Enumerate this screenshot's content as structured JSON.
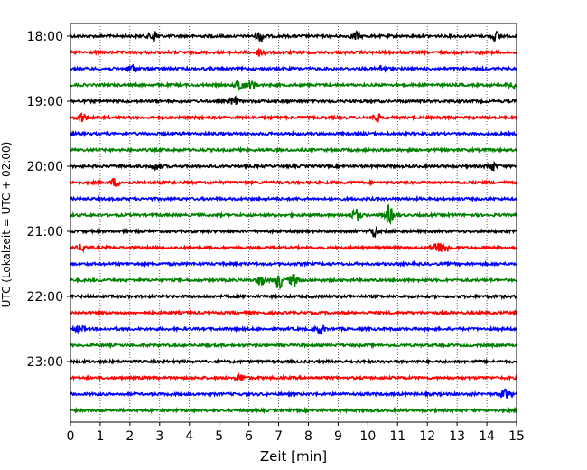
{
  "chart_data": {
    "type": "line",
    "title": "",
    "xlabel": "Zeit  [min]",
    "ylabel": "UTC (Lokalzeit = UTC + 02:00)",
    "xlim": [
      0,
      15
    ],
    "x_ticks": [
      "0",
      "1",
      "2",
      "3",
      "4",
      "5",
      "6",
      "7",
      "8",
      "9",
      "10",
      "11",
      "12",
      "13",
      "14",
      "15"
    ],
    "y_ticks": [
      {
        "label": "18:00",
        "row": 0
      },
      {
        "label": "19:00",
        "row": 4
      },
      {
        "label": "20:00",
        "row": 8
      },
      {
        "label": "21:00",
        "row": 12
      },
      {
        "label": "22:00",
        "row": 16
      },
      {
        "label": "23:00",
        "row": 20
      }
    ],
    "grid": "vertical dotted at each minute",
    "trace_interval_minutes": 15,
    "trace_colors": [
      "#000000",
      "#ff0000",
      "#0000ff",
      "#008000"
    ],
    "traces": [
      {
        "start": "18:00",
        "color": "#000000"
      },
      {
        "start": "18:15",
        "color": "#ff0000"
      },
      {
        "start": "18:30",
        "color": "#0000ff"
      },
      {
        "start": "18:45",
        "color": "#008000"
      },
      {
        "start": "19:00",
        "color": "#000000"
      },
      {
        "start": "19:15",
        "color": "#ff0000"
      },
      {
        "start": "19:30",
        "color": "#0000ff"
      },
      {
        "start": "19:45",
        "color": "#008000"
      },
      {
        "start": "20:00",
        "color": "#000000"
      },
      {
        "start": "20:15",
        "color": "#ff0000"
      },
      {
        "start": "20:30",
        "color": "#0000ff"
      },
      {
        "start": "20:45",
        "color": "#008000"
      },
      {
        "start": "21:00",
        "color": "#000000"
      },
      {
        "start": "21:15",
        "color": "#ff0000"
      },
      {
        "start": "21:30",
        "color": "#0000ff"
      },
      {
        "start": "21:45",
        "color": "#008000"
      },
      {
        "start": "22:00",
        "color": "#000000"
      },
      {
        "start": "22:15",
        "color": "#ff0000"
      },
      {
        "start": "22:30",
        "color": "#0000ff"
      },
      {
        "start": "22:45",
        "color": "#008000"
      },
      {
        "start": "23:00",
        "color": "#000000"
      },
      {
        "start": "23:15",
        "color": "#ff0000"
      },
      {
        "start": "23:30",
        "color": "#0000ff"
      },
      {
        "start": "23:45",
        "color": "#008000"
      }
    ],
    "events": [
      {
        "row": 0,
        "minute": 2.8,
        "amplitude": 1.5
      },
      {
        "row": 0,
        "minute": 6.4,
        "amplitude": 1.2
      },
      {
        "row": 0,
        "minute": 9.6,
        "amplitude": 1.0
      },
      {
        "row": 0,
        "minute": 14.3,
        "amplitude": 1.1
      },
      {
        "row": 1,
        "minute": 6.4,
        "amplitude": 1.0
      },
      {
        "row": 2,
        "minute": 2.1,
        "amplitude": 1.0
      },
      {
        "row": 2,
        "minute": 10.5,
        "amplitude": 0.8
      },
      {
        "row": 3,
        "minute": 5.7,
        "amplitude": 1.4
      },
      {
        "row": 3,
        "minute": 6.1,
        "amplitude": 1.0
      },
      {
        "row": 3,
        "minute": 14.9,
        "amplitude": 1.0
      },
      {
        "row": 4,
        "minute": 5.5,
        "amplitude": 1.0
      },
      {
        "row": 5,
        "minute": 0.4,
        "amplitude": 1.0
      },
      {
        "row": 5,
        "minute": 10.3,
        "amplitude": 0.8
      },
      {
        "row": 8,
        "minute": 2.9,
        "amplitude": 1.0
      },
      {
        "row": 8,
        "minute": 14.2,
        "amplitude": 1.0
      },
      {
        "row": 9,
        "minute": 1.5,
        "amplitude": 1.0
      },
      {
        "row": 11,
        "minute": 9.6,
        "amplitude": 1.5
      },
      {
        "row": 11,
        "minute": 10.7,
        "amplitude": 2.2
      },
      {
        "row": 12,
        "minute": 10.2,
        "amplitude": 1.0
      },
      {
        "row": 13,
        "minute": 0.4,
        "amplitude": 0.8
      },
      {
        "row": 13,
        "minute": 12.3,
        "amplitude": 1.5
      },
      {
        "row": 13,
        "minute": 12.6,
        "amplitude": 1.2
      },
      {
        "row": 15,
        "minute": 7.0,
        "amplitude": 2.0
      },
      {
        "row": 15,
        "minute": 7.5,
        "amplitude": 1.5
      },
      {
        "row": 15,
        "minute": 6.4,
        "amplitude": 1.2
      },
      {
        "row": 18,
        "minute": 8.4,
        "amplitude": 1.2
      },
      {
        "row": 18,
        "minute": 0.3,
        "amplitude": 0.8
      },
      {
        "row": 21,
        "minute": 5.7,
        "amplitude": 0.8
      },
      {
        "row": 22,
        "minute": 14.6,
        "amplitude": 1.2
      }
    ]
  }
}
